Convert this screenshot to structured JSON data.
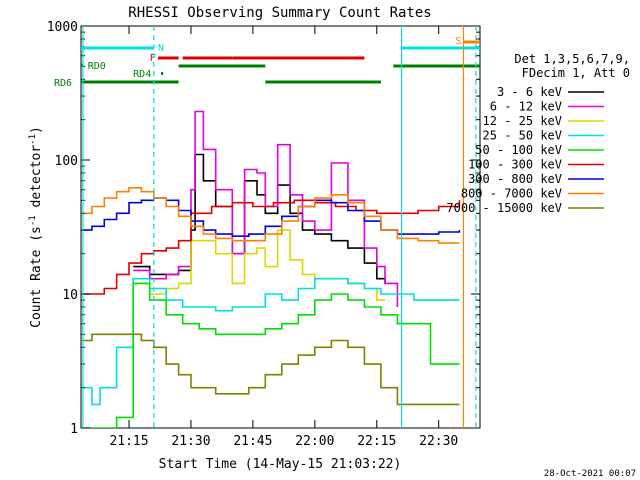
{
  "chart_data": {
    "type": "line",
    "title": "RHESSI Observing Summary Count Rates",
    "xlabel": "Start Time (14-May-15 21:03:22)",
    "ylabel_prefix": "Count Rate (s",
    "ylabel_sup": "-1",
    "ylabel_mid": " detector",
    "ylabel_sup2": "-1",
    "ylabel_suffix": ")",
    "y_scale": "log",
    "ylim": [
      1,
      1000
    ],
    "xlim": [
      "21:03:22",
      "22:40:00"
    ],
    "x_ticks": [
      "21:15",
      "21:30",
      "21:45",
      "22:00",
      "22:15",
      "22:30"
    ],
    "y_ticks": [
      {
        "value": 1,
        "label": "1"
      },
      {
        "value": 10,
        "label": "10"
      },
      {
        "value": 100,
        "label": "100"
      },
      {
        "value": 1000,
        "label": "1000"
      }
    ],
    "legend_header": [
      "Det 1,3,5,6,7,9,",
      "FDecim 1, Att 0"
    ],
    "series": [
      {
        "name": "3 - 6 keV",
        "color": "#000000",
        "x": [
          "21:16",
          "21:20",
          "21:24",
          "21:27",
          "21:30",
          "21:31",
          "21:33",
          "21:36",
          "21:40",
          "21:43",
          "21:46",
          "21:48",
          "21:51",
          "21:54",
          "21:57",
          "22:00",
          "22:04",
          "22:08",
          "22:12",
          "22:15",
          "22:17"
        ],
        "y": [
          16,
          14,
          14,
          15,
          30,
          110,
          70,
          45,
          20,
          70,
          55,
          40,
          65,
          40,
          30,
          28,
          25,
          22,
          17,
          13,
          12
        ]
      },
      {
        "name": "6 - 12 keV",
        "color": "#e000e0",
        "x": [
          "21:16",
          "21:20",
          "21:24",
          "21:27",
          "21:30",
          "21:31",
          "21:33",
          "21:36",
          "21:40",
          "21:43",
          "21:46",
          "21:48",
          "21:51",
          "21:54",
          "21:57",
          "22:00",
          "22:04",
          "22:08",
          "22:12",
          "22:15",
          "22:17",
          "22:20"
        ],
        "y": [
          15,
          13,
          14,
          16,
          60,
          230,
          120,
          60,
          20,
          85,
          80,
          45,
          130,
          55,
          35,
          30,
          95,
          50,
          22,
          16,
          12,
          8
        ]
      },
      {
        "name": "12 - 25 keV",
        "color": "#d8d800",
        "x": [
          "21:16",
          "21:20",
          "21:24",
          "21:27",
          "21:30",
          "21:33",
          "21:36",
          "21:40",
          "21:43",
          "21:46",
          "21:48",
          "21:51",
          "21:54",
          "21:57",
          "22:00",
          "22:04",
          "22:08",
          "22:12",
          "22:15",
          "22:17"
        ],
        "y": [
          12,
          10,
          11,
          12,
          25,
          25,
          20,
          12,
          20,
          22,
          16,
          30,
          18,
          14,
          13,
          13,
          12,
          11,
          9,
          9
        ]
      },
      {
        "name": "25 - 50 keV",
        "color": "#00e0e0",
        "x": [
          "21:03",
          "21:06",
          "21:08",
          "21:12",
          "21:16",
          "21:20",
          "21:24",
          "21:28",
          "21:32",
          "21:36",
          "21:40",
          "21:44",
          "21:48",
          "21:52",
          "21:56",
          "22:00",
          "22:04",
          "22:08",
          "22:12",
          "22:16",
          "22:20",
          "22:24",
          "22:30",
          "22:35"
        ],
        "y": [
          2,
          1.5,
          2,
          4,
          13,
          11,
          9,
          8,
          8,
          7.5,
          8,
          8,
          10,
          9,
          11,
          13,
          13,
          12,
          11,
          10,
          10,
          9,
          9,
          9
        ]
      },
      {
        "name": "50 - 100 keV",
        "color": "#00e000",
        "x": [
          "21:03",
          "21:08",
          "21:12",
          "21:16",
          "21:20",
          "21:24",
          "21:28",
          "21:32",
          "21:36",
          "21:40",
          "21:44",
          "21:48",
          "21:52",
          "21:56",
          "22:00",
          "22:04",
          "22:08",
          "22:12",
          "22:16",
          "22:20",
          "22:24",
          "22:28",
          "22:32",
          "22:35"
        ],
        "y": [
          1,
          1,
          1.2,
          12,
          9,
          7,
          6,
          5.5,
          5,
          5,
          5,
          5.5,
          6,
          7,
          9,
          10,
          9,
          8,
          7,
          6,
          6,
          3,
          3,
          3
        ]
      },
      {
        "name": "100 - 300 keV",
        "color": "#e00000",
        "x": [
          "21:03",
          "21:06",
          "21:09",
          "21:12",
          "21:15",
          "21:18",
          "21:21",
          "21:24",
          "21:27",
          "21:30",
          "21:35",
          "21:40",
          "21:45",
          "21:50",
          "21:55",
          "22:00",
          "22:05",
          "22:10",
          "22:15",
          "22:20",
          "22:25",
          "22:30",
          "22:35"
        ],
        "y": [
          10,
          10,
          11,
          14,
          17,
          20,
          21,
          22,
          25,
          40,
          45,
          48,
          45,
          48,
          50,
          48,
          45,
          42,
          40,
          40,
          42,
          45,
          50
        ]
      },
      {
        "name": "300 - 800 keV",
        "color": "#0000e0",
        "x": [
          "21:03",
          "21:06",
          "21:09",
          "21:12",
          "21:15",
          "21:18",
          "21:21",
          "21:24",
          "21:27",
          "21:30",
          "21:33",
          "21:36",
          "21:40",
          "21:44",
          "21:48",
          "21:52",
          "21:56",
          "22:00",
          "22:04",
          "22:08",
          "22:12",
          "22:16",
          "22:20",
          "22:25",
          "22:30",
          "22:35"
        ],
        "y": [
          30,
          32,
          36,
          40,
          48,
          50,
          52,
          50,
          42,
          35,
          30,
          28,
          27,
          28,
          32,
          38,
          45,
          50,
          48,
          42,
          35,
          30,
          28,
          28,
          29,
          30
        ]
      },
      {
        "name": "800 - 7000 keV",
        "color": "#ff8000",
        "x": [
          "21:03",
          "21:06",
          "21:09",
          "21:12",
          "21:15",
          "21:18",
          "21:21",
          "21:24",
          "21:27",
          "21:30",
          "21:33",
          "21:36",
          "21:40",
          "21:44",
          "21:48",
          "21:52",
          "21:56",
          "22:00",
          "22:04",
          "22:08",
          "22:12",
          "22:16",
          "22:20",
          "22:25",
          "22:30",
          "22:35"
        ],
        "y": [
          40,
          45,
          52,
          58,
          62,
          58,
          52,
          45,
          38,
          32,
          28,
          26,
          25,
          25,
          28,
          35,
          45,
          52,
          55,
          48,
          38,
          30,
          26,
          25,
          24,
          24
        ]
      },
      {
        "name": "7000 - 15000 keV",
        "color": "#808000",
        "x": [
          "21:03",
          "21:06",
          "21:09",
          "21:12",
          "21:15",
          "21:18",
          "21:21",
          "21:24",
          "21:27",
          "21:30",
          "21:33",
          "21:36",
          "21:40",
          "21:44",
          "21:48",
          "21:52",
          "21:56",
          "22:00",
          "22:04",
          "22:08",
          "22:12",
          "22:16",
          "22:20",
          "22:25",
          "22:30",
          "22:35"
        ],
        "y": [
          4.5,
          5,
          5,
          5,
          5,
          4.5,
          4,
          3,
          2.5,
          2,
          2,
          1.8,
          1.8,
          2,
          2.5,
          3,
          3.5,
          4,
          4.5,
          4,
          3,
          2,
          1.5,
          1.5,
          1.5,
          1.5
        ]
      }
    ],
    "annotations": [
      {
        "label": "RD0",
        "color": "#008000"
      },
      {
        "label": "RD6",
        "color": "#008000"
      },
      {
        "label": "RD4",
        "color": "#008000"
      },
      {
        "label": "F",
        "color": "#e00000"
      },
      {
        "label": "N",
        "color": "#00e0e0"
      },
      {
        "label": "S",
        "color": "#ff8000"
      }
    ],
    "timestamp": "28-Oct-2021 00:07"
  }
}
